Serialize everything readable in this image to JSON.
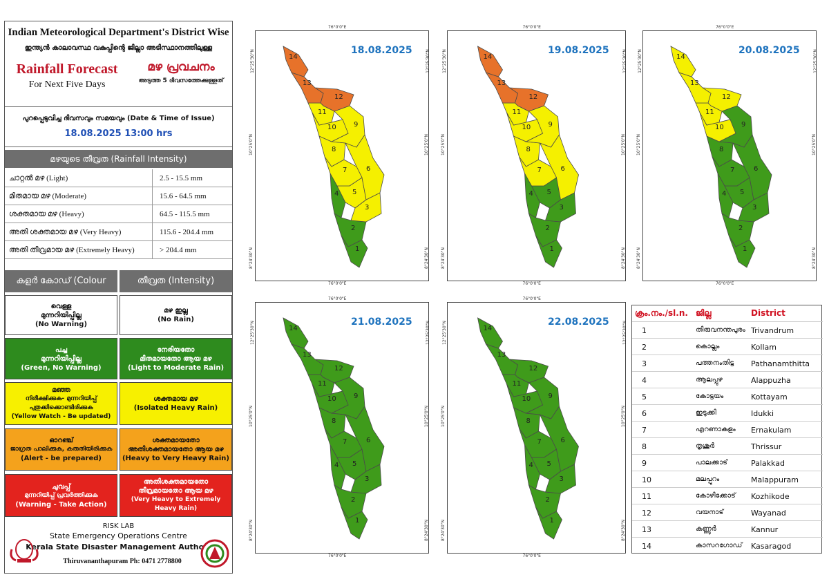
{
  "header": {
    "title_en": "Indian Meteorological Department's District Wise",
    "title_ml": "ഇന്ത്യൻ കാലാവസ്ഥ വകുപ്പിന്റെ ജില്ലാ അടിസ്ഥാനത്തിലുള്ള",
    "rainfall_forecast": "Rainfall Forecast",
    "next_five": "For Next Five Days",
    "rainfall_forecast_ml": "മഴ പ്രവചനം",
    "next_five_ml": "അടുത്ത 5 ദിവസത്തേക്കുള്ളത്"
  },
  "issue": {
    "label": "പുറപ്പെടുവിച്ച ദിവസവും സമയവും (Date & Time of Issue)",
    "value": "18.08.2025 13:00 hrs"
  },
  "intensity": {
    "heading": "മഴയുടെ തീവ്രത (Rainfall Intensity)",
    "rows": [
      {
        "label": "ചാറ്റൽ മഴ (Light)",
        "range": "2.5 - 15.5 mm"
      },
      {
        "label": "മിതമായ മഴ (Moderate)",
        "range": "15.6 - 64.5 mm"
      },
      {
        "label": "ശക്തമായ മഴ (Heavy)",
        "range": "64.5 - 115.5 mm"
      },
      {
        "label": "അതി ശക്തമായ മഴ (Very Heavy)",
        "range": "115.6 - 204.4 mm"
      },
      {
        "label": "അതി തീവ്രമായ മഴ (Extremely Heavy)",
        "range": "> 204.4 mm"
      }
    ]
  },
  "colour_code": {
    "heading_left": "കളർ കോഡ് (Colour Code)",
    "heading_right": "തീവ്രത (Intensity)",
    "rows": [
      {
        "code_ml": "വെള്ള",
        "code_1": "മുന്നറിയിപ്പില്ല",
        "code_2": "(No Warning)",
        "int_1": "മഴ ഇല്ല",
        "int_2": "(No Rain)",
        "bg": "#ffffff",
        "fg": "#111111"
      },
      {
        "code_ml": "പച്ച",
        "code_1": "മുന്നറിയിപ്പില്ല",
        "code_2": "(Green, No Warning)",
        "int_1": "നേരിയതോ",
        "int_2": "മിതമായതോ ആയ മഴ",
        "int_3": "(Light to Moderate Rain)",
        "bg": "#2e8b1e",
        "fg": "#ffffff"
      },
      {
        "code_ml": "മഞ്ഞ",
        "code_1": "നിരീക്ഷിക്കുക- മുന്നറിയിപ്പ്",
        "code_2": "പുതുക്കിക്കൊണ്ടിരിക്കുക",
        "code_3": "(Yellow Watch - Be updated)",
        "int_1": "ശക്തമായ മഴ",
        "int_2": "(Isolated Heavy Rain)",
        "bg": "#f7f000",
        "fg": "#111111"
      },
      {
        "code_ml": "ഓറഞ്ച്",
        "code_1": "ജാഗ്രത പാലിക്കുക, കരുതിയിരിക്കുക",
        "code_2": "(Alert - be prepared)",
        "int_1": "ശക്തമായതോ",
        "int_2": "അതിശക്തമായതോ ആയ മഴ",
        "int_3": "(Heavy to Very Heavy Rain)",
        "bg": "#f4a21c",
        "fg": "#111111"
      },
      {
        "code_ml": "ചുവപ്പ്",
        "code_1": "മുന്നറിയിപ്പ് പ്രവർത്തിക്കുക",
        "code_2": "(Warning - Take Action)",
        "int_1": "അതിശക്തമായതോ",
        "int_2": "തീവ്രമായതോ ആയ മഴ",
        "int_3": "(Very Heavy to Extremely Heavy Rain)",
        "bg": "#e3231e",
        "fg": "#ffffff"
      }
    ]
  },
  "footer": {
    "risk_lab": "RISK LAB",
    "seoc": "State Emergency Operations Centre",
    "ksdma": "Kerala State Disaster Management Authority",
    "address": "Thiruvananthapuram Ph: 0471 2778800"
  },
  "coords": {
    "lon": "76°0'0\"E",
    "lat_top": "12°25'30\"N",
    "lat_mid": "10°25'0\"N",
    "lat_bot": "8°24'30\"N"
  },
  "colors": {
    "green": "#3f9b1b",
    "yellow": "#f5f000",
    "orange": "#e7722a",
    "date": "#1e73be"
  },
  "maps": [
    {
      "date": "18.08.2025",
      "district_colors": {
        "1": "green",
        "2": "green",
        "3": "yellow",
        "4": "green",
        "5": "yellow",
        "6": "yellow",
        "7": "yellow",
        "8": "yellow",
        "9": "yellow",
        "10": "yellow",
        "11": "yellow",
        "12": "orange",
        "13": "orange",
        "14": "orange"
      }
    },
    {
      "date": "19.08.2025",
      "district_colors": {
        "1": "green",
        "2": "green",
        "3": "green",
        "4": "green",
        "5": "green",
        "6": "yellow",
        "7": "yellow",
        "8": "yellow",
        "9": "yellow",
        "10": "yellow",
        "11": "yellow",
        "12": "orange",
        "13": "orange",
        "14": "orange"
      }
    },
    {
      "date": "20.08.2025",
      "district_colors": {
        "1": "green",
        "2": "green",
        "3": "green",
        "4": "green",
        "5": "green",
        "6": "green",
        "7": "green",
        "8": "green",
        "9": "green",
        "10": "yellow",
        "11": "yellow",
        "12": "yellow",
        "13": "yellow",
        "14": "yellow"
      }
    },
    {
      "date": "21.08.2025",
      "district_colors": {
        "1": "green",
        "2": "green",
        "3": "green",
        "4": "green",
        "5": "green",
        "6": "green",
        "7": "green",
        "8": "green",
        "9": "green",
        "10": "green",
        "11": "green",
        "12": "green",
        "13": "green",
        "14": "green"
      }
    },
    {
      "date": "22.08.2025",
      "district_colors": {
        "1": "green",
        "2": "green",
        "3": "green",
        "4": "green",
        "5": "green",
        "6": "green",
        "7": "green",
        "8": "green",
        "9": "green",
        "10": "green",
        "11": "green",
        "12": "green",
        "13": "green",
        "14": "green"
      }
    }
  ],
  "district_table": {
    "h_no": "ക്രം.നം./sl.n.",
    "h_ml": "ജില്ല",
    "h_en": "District",
    "rows": [
      {
        "no": "1",
        "ml": "തിരുവനന്തപുരം",
        "en": "Trivandrum"
      },
      {
        "no": "2",
        "ml": "കൊല്ലം",
        "en": "Kollam"
      },
      {
        "no": "3",
        "ml": "പത്തനംതിട്ട",
        "en": "Pathanamthitta"
      },
      {
        "no": "4",
        "ml": "ആലപ്പുഴ",
        "en": "Alappuzha"
      },
      {
        "no": "5",
        "ml": "കോട്ടയം",
        "en": "Kottayam"
      },
      {
        "no": "6",
        "ml": "ഇടുക്കി",
        "en": "Idukki"
      },
      {
        "no": "7",
        "ml": "എറണാകുളം",
        "en": "Ernakulam"
      },
      {
        "no": "8",
        "ml": "തൃശൂർ",
        "en": "Thrissur"
      },
      {
        "no": "9",
        "ml": "പാലക്കാട്",
        "en": "Palakkad"
      },
      {
        "no": "10",
        "ml": "മലപ്പുറം",
        "en": "Malappuram"
      },
      {
        "no": "11",
        "ml": "കോഴിക്കോട്",
        "en": "Kozhikode"
      },
      {
        "no": "12",
        "ml": "വയനാട്",
        "en": "Wayanad"
      },
      {
        "no": "13",
        "ml": "കണ്ണൂർ",
        "en": "Kannur"
      },
      {
        "no": "14",
        "ml": "കാസറഗോഡ്",
        "en": "Kasaragod"
      }
    ]
  }
}
